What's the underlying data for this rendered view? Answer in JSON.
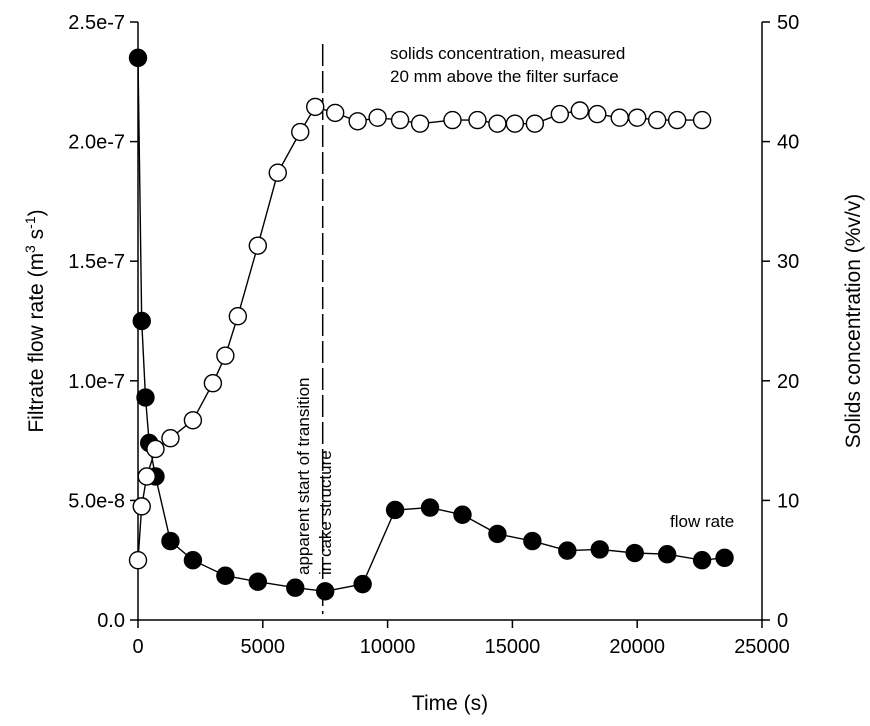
{
  "chart_data": {
    "type": "scatter",
    "xlabel": "Time (s)",
    "ylabel_left": {
      "main": "Filtrate flow rate (m",
      "sup1": "3",
      "mid": " s",
      "sup2": "-1",
      "end": ")"
    },
    "ylabel_right": "Solids concentration (%v/v)",
    "xlim": [
      0,
      25000
    ],
    "ylim_left": [
      0,
      2.5e-07
    ],
    "ylim_right": [
      0,
      50
    ],
    "x_ticks": [
      0,
      5000,
      10000,
      15000,
      20000,
      25000
    ],
    "x_tick_labels": [
      "0",
      "5000",
      "10000",
      "15000",
      "20000",
      "25000"
    ],
    "y_left_ticks": [
      0,
      5e-08,
      1e-07,
      1.5e-07,
      2e-07,
      2.5e-07
    ],
    "y_left_tick_labels": [
      "0.0",
      "5.0e-8",
      "1.0e-7",
      "1.5e-7",
      "2.0e-7",
      "2.5e-7"
    ],
    "y_right_ticks": [
      0,
      10,
      20,
      30,
      40,
      50
    ],
    "y_right_tick_labels": [
      "0",
      "10",
      "20",
      "30",
      "40",
      "50"
    ],
    "grid": false,
    "series": [
      {
        "name": "flow rate",
        "axis": "left",
        "marker": "filled-circle",
        "x": [
          0,
          150,
          300,
          450,
          700,
          1300,
          2200,
          3500,
          4800,
          6300,
          7500,
          9000,
          10300,
          11700,
          13000,
          14400,
          15800,
          17200,
          18500,
          19900,
          21200,
          22600,
          23500
        ],
        "y": [
          2.35e-07,
          1.25e-07,
          9.3e-08,
          7.4e-08,
          6e-08,
          3.3e-08,
          2.5e-08,
          1.85e-08,
          1.6e-08,
          1.35e-08,
          1.2e-08,
          1.5e-08,
          4.6e-08,
          4.7e-08,
          4.4e-08,
          3.6e-08,
          3.3e-08,
          2.9e-08,
          2.95e-08,
          2.8e-08,
          2.75e-08,
          2.5e-08,
          2.6e-08
        ]
      },
      {
        "name": "solids concentration, measured 20 mm above the filter surface",
        "axis": "right",
        "marker": "open-circle",
        "x": [
          0,
          150,
          350,
          700,
          1300,
          2200,
          3000,
          3500,
          4000,
          4800,
          5600,
          6500,
          7100,
          7900,
          8800,
          9600,
          10500,
          11300,
          12600,
          13600,
          14400,
          15100,
          15900,
          16900,
          17700,
          18400,
          19300,
          20000,
          20800,
          21600,
          22600
        ],
        "y": [
          5,
          9.5,
          12,
          14.3,
          15.2,
          16.7,
          19.8,
          22.1,
          25.4,
          31.3,
          37.4,
          40.8,
          42.9,
          42.4,
          41.7,
          42,
          41.8,
          41.5,
          41.8,
          41.8,
          41.5,
          41.5,
          41.5,
          42.3,
          42.6,
          42.3,
          42,
          42,
          41.8,
          41.8,
          41.8
        ]
      }
    ],
    "reference_line": {
      "x": 7400,
      "style": "dashed"
    },
    "annotations": {
      "transition_line1": "apparent start of transition",
      "transition_line2": "in cake structure",
      "solids_line1": "solids concentration, measured",
      "solids_line2": "20 mm above the filter surface",
      "flow_label": "flow rate"
    },
    "colors": {
      "line": "#000000",
      "filled_marker": "#000000",
      "open_marker_fill": "#ffffff"
    }
  }
}
